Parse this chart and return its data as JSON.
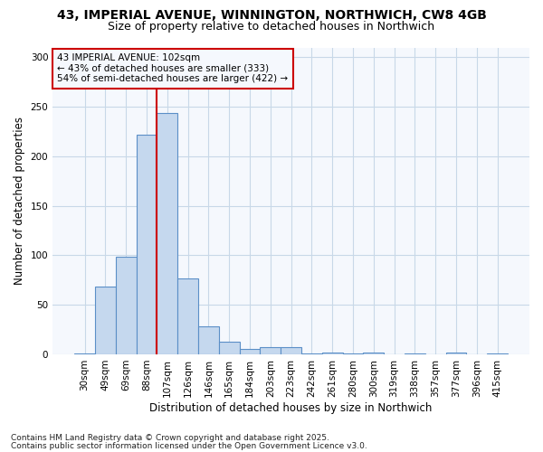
{
  "title_line1": "43, IMPERIAL AVENUE, WINNINGTON, NORTHWICH, CW8 4GB",
  "title_line2": "Size of property relative to detached houses in Northwich",
  "xlabel": "Distribution of detached houses by size in Northwich",
  "ylabel": "Number of detached properties",
  "categories": [
    "30sqm",
    "49sqm",
    "69sqm",
    "88sqm",
    "107sqm",
    "126sqm",
    "146sqm",
    "165sqm",
    "184sqm",
    "203sqm",
    "223sqm",
    "242sqm",
    "261sqm",
    "280sqm",
    "300sqm",
    "319sqm",
    "338sqm",
    "357sqm",
    "377sqm",
    "396sqm",
    "415sqm"
  ],
  "values": [
    1,
    68,
    99,
    222,
    244,
    77,
    28,
    13,
    5,
    7,
    7,
    1,
    2,
    1,
    2,
    0,
    1,
    0,
    2,
    0,
    1
  ],
  "bar_color": "#c5d8ee",
  "bar_edge_color": "#5b8fc7",
  "grid_color": "#c8d8e8",
  "vline_color": "#cc0000",
  "vline_x_index": 4,
  "annotation_text_line1": "43 IMPERIAL AVENUE: 102sqm",
  "annotation_text_line2": "← 43% of detached houses are smaller (333)",
  "annotation_text_line3": "54% of semi-detached houses are larger (422) →",
  "box_edge_color": "#cc0000",
  "ylim": [
    0,
    310
  ],
  "yticks": [
    0,
    50,
    100,
    150,
    200,
    250,
    300
  ],
  "footnote_line1": "Contains HM Land Registry data © Crown copyright and database right 2025.",
  "footnote_line2": "Contains public sector information licensed under the Open Government Licence v3.0.",
  "bg_color": "#ffffff",
  "plot_bg_color": "#f5f8fd",
  "title_fontsize": 10,
  "subtitle_fontsize": 9,
  "tick_fontsize": 7.5,
  "label_fontsize": 8.5,
  "annotation_fontsize": 7.5,
  "footnote_fontsize": 6.5
}
